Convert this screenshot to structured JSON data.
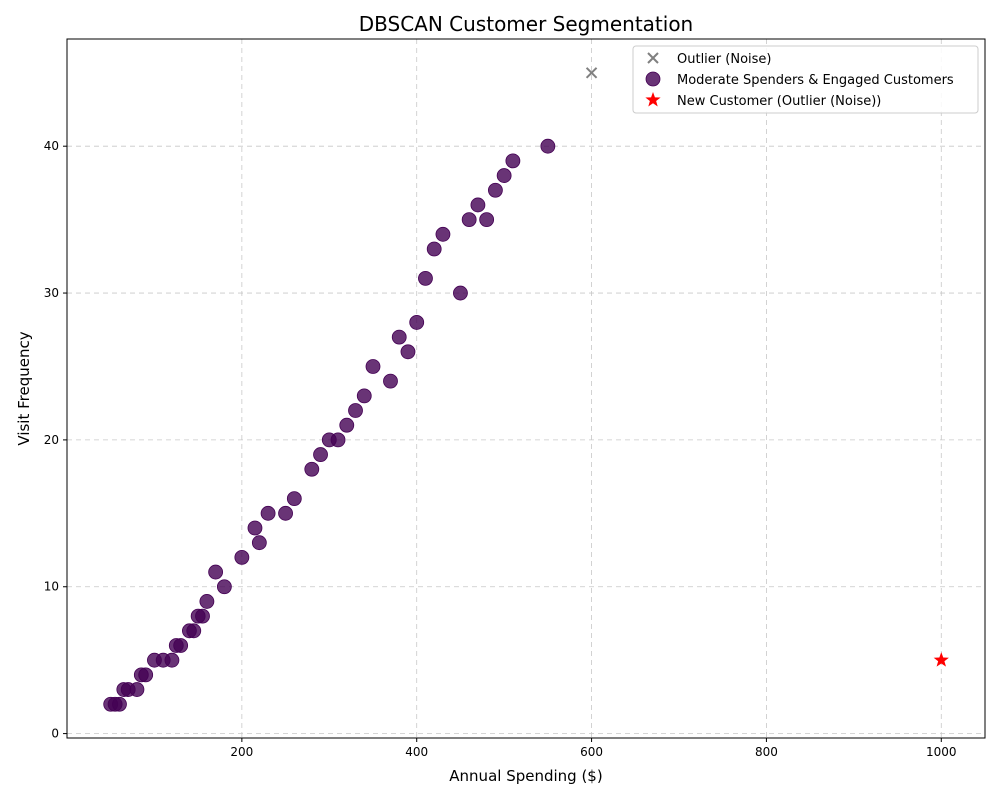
{
  "chart_data": {
    "type": "scatter",
    "title": "DBSCAN Customer Segmentation",
    "xlabel": "Annual Spending ($)",
    "ylabel": "Visit Frequency",
    "xlim": [
      0,
      1050
    ],
    "ylim": [
      -0.3,
      47.3
    ],
    "xticks": [
      200,
      400,
      600,
      800,
      1000
    ],
    "yticks": [
      0,
      10,
      20,
      30,
      40
    ],
    "grid": true,
    "legend_position": "top-right",
    "series": [
      {
        "name": "Outlier (Noise)",
        "marker": "x",
        "color": "#808080",
        "points": [
          [
            600,
            45
          ]
        ]
      },
      {
        "name": "Moderate Spenders & Engaged Customers",
        "marker": "circle",
        "color": "#440154",
        "points": [
          [
            50,
            2
          ],
          [
            55,
            2
          ],
          [
            60,
            2
          ],
          [
            65,
            3
          ],
          [
            70,
            3
          ],
          [
            80,
            3
          ],
          [
            85,
            4
          ],
          [
            90,
            4
          ],
          [
            100,
            5
          ],
          [
            110,
            5
          ],
          [
            120,
            5
          ],
          [
            125,
            6
          ],
          [
            130,
            6
          ],
          [
            140,
            7
          ],
          [
            145,
            7
          ],
          [
            150,
            8
          ],
          [
            155,
            8
          ],
          [
            160,
            9
          ],
          [
            170,
            11
          ],
          [
            180,
            10
          ],
          [
            200,
            12
          ],
          [
            215,
            14
          ],
          [
            220,
            13
          ],
          [
            230,
            15
          ],
          [
            250,
            15
          ],
          [
            260,
            16
          ],
          [
            280,
            18
          ],
          [
            290,
            19
          ],
          [
            300,
            20
          ],
          [
            310,
            20
          ],
          [
            320,
            21
          ],
          [
            330,
            22
          ],
          [
            340,
            23
          ],
          [
            350,
            25
          ],
          [
            370,
            24
          ],
          [
            380,
            27
          ],
          [
            390,
            26
          ],
          [
            400,
            28
          ],
          [
            410,
            31
          ],
          [
            420,
            33
          ],
          [
            430,
            34
          ],
          [
            450,
            30
          ],
          [
            460,
            35
          ],
          [
            470,
            36
          ],
          [
            480,
            35
          ],
          [
            490,
            37
          ],
          [
            500,
            38
          ],
          [
            510,
            39
          ],
          [
            550,
            40
          ]
        ]
      },
      {
        "name": "New Customer (Outlier (Noise))",
        "marker": "star",
        "color": "#ff0000",
        "points": [
          [
            1000,
            5
          ]
        ]
      }
    ]
  }
}
